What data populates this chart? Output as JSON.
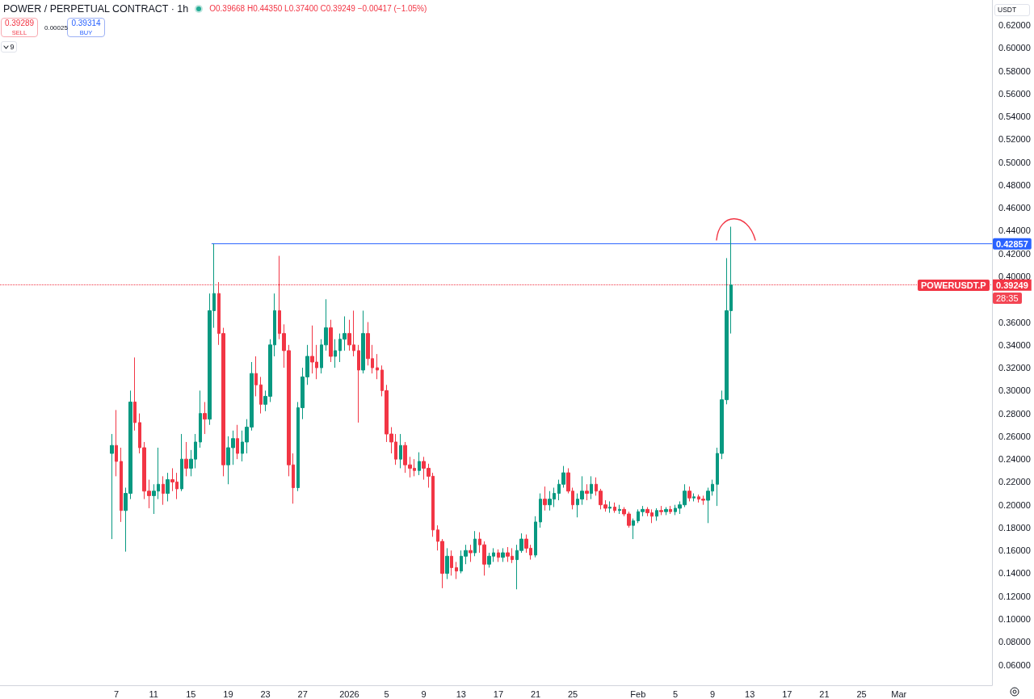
{
  "chart_data": {
    "type": "candlestick",
    "title": "POWER / PERPETUAL CONTRACT · 1h",
    "ylabel": "USDT",
    "annotations": [
      "O0.39668 H0.44350 L0.37400 C0.39249 −0.00417 (−1.05%)",
      "0.39289",
      "SELL",
      "0.00025",
      "0.39314",
      "BUY",
      "9",
      "POWERUSDT.P",
      "28:35"
    ],
    "x": [
      "2025-12-06T12:00",
      "2025-12-07T00:00",
      "2025-12-07T12:00",
      "2025-12-08T00:00",
      "2025-12-08T12:00",
      "2025-12-09T00:00",
      "2025-12-09T12:00",
      "2025-12-10T00:00",
      "2025-12-10T12:00",
      "2025-12-11T00:00",
      "2025-12-11T12:00",
      "2025-12-12T00:00",
      "2025-12-12T12:00",
      "2025-12-13T00:00",
      "2025-12-13T12:00",
      "2025-12-14T00:00",
      "2025-12-14T12:00",
      "2025-12-15T00:00",
      "2025-12-15T12:00",
      "2025-12-16T00:00",
      "2025-12-16T12:00",
      "2025-12-17T00:00",
      "2025-12-17T12:00",
      "2025-12-18T00:00",
      "2025-12-18T12:00",
      "2025-12-19T00:00",
      "2025-12-19T12:00",
      "2025-12-20T00:00",
      "2025-12-20T12:00",
      "2025-12-21T00:00",
      "2025-12-21T12:00",
      "2025-12-22T00:00",
      "2025-12-22T12:00",
      "2025-12-23T00:00",
      "2025-12-23T12:00",
      "2025-12-24T00:00",
      "2025-12-24T12:00",
      "2025-12-25T00:00",
      "2025-12-25T12:00",
      "2025-12-26T00:00",
      "2025-12-26T12:00",
      "2025-12-27T00:00",
      "2025-12-27T12:00",
      "2025-12-28T00:00",
      "2025-12-28T12:00",
      "2025-12-29T00:00",
      "2025-12-29T12:00",
      "2025-12-30T00:00",
      "2025-12-30T12:00",
      "2025-12-31T00:00",
      "2025-12-31T12:00",
      "2026-01-01T00:00",
      "2026-01-01T12:00",
      "2026-01-02T00:00",
      "2026-01-02T12:00",
      "2026-01-03T00:00",
      "2026-01-03T12:00",
      "2026-01-04T00:00",
      "2026-01-04T12:00",
      "2026-01-05T00:00",
      "2026-01-05T12:00",
      "2026-01-06T00:00",
      "2026-01-06T12:00",
      "2026-01-07T00:00",
      "2026-01-07T12:00",
      "2026-01-08T00:00",
      "2026-01-08T12:00",
      "2026-01-09T00:00",
      "2026-01-09T12:00",
      "2026-01-10T00:00",
      "2026-01-10T12:00",
      "2026-01-11T00:00",
      "2026-01-11T12:00",
      "2026-01-12T00:00",
      "2026-01-12T12:00",
      "2026-01-13T00:00",
      "2026-01-13T12:00",
      "2026-01-14T00:00",
      "2026-01-14T12:00",
      "2026-01-15T00:00",
      "2026-01-15T12:00",
      "2026-01-16T00:00",
      "2026-01-16T12:00",
      "2026-01-17T00:00",
      "2026-01-17T12:00",
      "2026-01-18T00:00",
      "2026-01-18T12:00",
      "2026-01-19T00:00",
      "2026-01-19T12:00",
      "2026-01-20T00:00",
      "2026-01-20T12:00",
      "2026-01-21T00:00",
      "2026-01-21T12:00",
      "2026-01-22T00:00",
      "2026-01-22T12:00",
      "2026-01-23T00:00",
      "2026-01-23T12:00",
      "2026-01-24T00:00",
      "2026-01-24T12:00",
      "2026-01-25T00:00",
      "2026-01-25T12:00",
      "2026-01-26T00:00",
      "2026-01-26T12:00",
      "2026-01-27T00:00",
      "2026-01-27T12:00",
      "2026-01-28T00:00",
      "2026-01-28T12:00",
      "2026-01-29T00:00",
      "2026-01-29T12:00",
      "2026-01-30T00:00",
      "2026-01-30T12:00",
      "2026-01-31T00:00",
      "2026-01-31T12:00",
      "2026-02-01T00:00",
      "2026-02-01T12:00",
      "2026-02-02T00:00",
      "2026-02-02T12:00",
      "2026-02-03T00:00",
      "2026-02-03T12:00",
      "2026-02-04T00:00",
      "2026-02-04T12:00",
      "2026-02-05T00:00",
      "2026-02-05T12:00",
      "2026-02-06T00:00",
      "2026-02-06T12:00",
      "2026-02-07T00:00",
      "2026-02-07T12:00",
      "2026-02-08T00:00",
      "2026-02-08T12:00",
      "2026-02-09T00:00",
      "2026-02-09T12:00",
      "2026-02-10T00:00",
      "2026-02-10T12:00",
      "2026-02-11T00:00"
    ],
    "ohlc": [
      [
        0.245,
        0.262,
        0.17,
        0.252
      ],
      [
        0.252,
        0.283,
        0.225,
        0.238
      ],
      [
        0.238,
        0.25,
        0.185,
        0.195
      ],
      [
        0.195,
        0.215,
        0.159,
        0.21
      ],
      [
        0.21,
        0.3,
        0.205,
        0.29
      ],
      [
        0.29,
        0.329,
        0.265,
        0.272
      ],
      [
        0.272,
        0.28,
        0.245,
        0.25
      ],
      [
        0.25,
        0.255,
        0.205,
        0.212
      ],
      [
        0.212,
        0.222,
        0.197,
        0.208
      ],
      [
        0.208,
        0.218,
        0.192,
        0.212
      ],
      [
        0.212,
        0.25,
        0.205,
        0.218
      ],
      [
        0.218,
        0.225,
        0.2,
        0.21
      ],
      [
        0.21,
        0.228,
        0.203,
        0.222
      ],
      [
        0.222,
        0.232,
        0.212,
        0.22
      ],
      [
        0.22,
        0.228,
        0.205,
        0.214
      ],
      [
        0.214,
        0.262,
        0.212,
        0.24
      ],
      [
        0.24,
        0.255,
        0.225,
        0.232
      ],
      [
        0.232,
        0.248,
        0.225,
        0.24
      ],
      [
        0.24,
        0.262,
        0.232,
        0.255
      ],
      [
        0.255,
        0.3,
        0.25,
        0.28
      ],
      [
        0.28,
        0.29,
        0.262,
        0.275
      ],
      [
        0.275,
        0.385,
        0.27,
        0.37
      ],
      [
        0.37,
        0.42857,
        0.355,
        0.385
      ],
      [
        0.385,
        0.395,
        0.34,
        0.35
      ],
      [
        0.35,
        0.355,
        0.225,
        0.235
      ],
      [
        0.235,
        0.26,
        0.218,
        0.25
      ],
      [
        0.25,
        0.265,
        0.235,
        0.258
      ],
      [
        0.258,
        0.27,
        0.24,
        0.245
      ],
      [
        0.245,
        0.265,
        0.238,
        0.255
      ],
      [
        0.255,
        0.275,
        0.245,
        0.268
      ],
      [
        0.268,
        0.325,
        0.265,
        0.315
      ],
      [
        0.315,
        0.33,
        0.295,
        0.305
      ],
      [
        0.305,
        0.312,
        0.28,
        0.288
      ],
      [
        0.288,
        0.3,
        0.282,
        0.295
      ],
      [
        0.295,
        0.345,
        0.29,
        0.34
      ],
      [
        0.34,
        0.385,
        0.33,
        0.37
      ],
      [
        0.37,
        0.418,
        0.345,
        0.35
      ],
      [
        0.35,
        0.358,
        0.32,
        0.335
      ],
      [
        0.335,
        0.34,
        0.225,
        0.235
      ],
      [
        0.235,
        0.245,
        0.201,
        0.215
      ],
      [
        0.215,
        0.29,
        0.212,
        0.285
      ],
      [
        0.285,
        0.32,
        0.275,
        0.312
      ],
      [
        0.312,
        0.34,
        0.305,
        0.33
      ],
      [
        0.33,
        0.357,
        0.315,
        0.325
      ],
      [
        0.325,
        0.34,
        0.31,
        0.32
      ],
      [
        0.32,
        0.345,
        0.315,
        0.34
      ],
      [
        0.34,
        0.38,
        0.335,
        0.355
      ],
      [
        0.355,
        0.362,
        0.325,
        0.33
      ],
      [
        0.33,
        0.345,
        0.32,
        0.335
      ],
      [
        0.335,
        0.35,
        0.325,
        0.345
      ],
      [
        0.345,
        0.365,
        0.335,
        0.35
      ],
      [
        0.35,
        0.362,
        0.335,
        0.34
      ],
      [
        0.34,
        0.37,
        0.33,
        0.335
      ],
      [
        0.335,
        0.34,
        0.272,
        0.318
      ],
      [
        0.318,
        0.37,
        0.315,
        0.35
      ],
      [
        0.35,
        0.36,
        0.322,
        0.328
      ],
      [
        0.328,
        0.34,
        0.315,
        0.32
      ],
      [
        0.32,
        0.332,
        0.31,
        0.318
      ],
      [
        0.318,
        0.322,
        0.295,
        0.3
      ],
      [
        0.3,
        0.305,
        0.255,
        0.262
      ],
      [
        0.262,
        0.268,
        0.245,
        0.255
      ],
      [
        0.255,
        0.262,
        0.235,
        0.24
      ],
      [
        0.24,
        0.262,
        0.232,
        0.252
      ],
      [
        0.252,
        0.255,
        0.228,
        0.235
      ],
      [
        0.235,
        0.242,
        0.224,
        0.232
      ],
      [
        0.232,
        0.24,
        0.225,
        0.23
      ],
      [
        0.23,
        0.246,
        0.226,
        0.238
      ],
      [
        0.238,
        0.242,
        0.222,
        0.232
      ],
      [
        0.232,
        0.236,
        0.215,
        0.225
      ],
      [
        0.225,
        0.228,
        0.172,
        0.178
      ],
      [
        0.178,
        0.182,
        0.16,
        0.168
      ],
      [
        0.168,
        0.17,
        0.127,
        0.14
      ],
      [
        0.14,
        0.162,
        0.135,
        0.155
      ],
      [
        0.155,
        0.16,
        0.138,
        0.145
      ],
      [
        0.145,
        0.15,
        0.135,
        0.142
      ],
      [
        0.142,
        0.16,
        0.14,
        0.155
      ],
      [
        0.155,
        0.165,
        0.148,
        0.16
      ],
      [
        0.16,
        0.165,
        0.15,
        0.158
      ],
      [
        0.158,
        0.177,
        0.155,
        0.17
      ],
      [
        0.17,
        0.176,
        0.158,
        0.165
      ],
      [
        0.165,
        0.168,
        0.138,
        0.148
      ],
      [
        0.148,
        0.158,
        0.145,
        0.155
      ],
      [
        0.155,
        0.162,
        0.15,
        0.158
      ],
      [
        0.158,
        0.161,
        0.15,
        0.154
      ],
      [
        0.154,
        0.162,
        0.15,
        0.158
      ],
      [
        0.158,
        0.163,
        0.15,
        0.155
      ],
      [
        0.155,
        0.162,
        0.149,
        0.152
      ],
      [
        0.152,
        0.165,
        0.126,
        0.16
      ],
      [
        0.16,
        0.175,
        0.158,
        0.17
      ],
      [
        0.17,
        0.174,
        0.158,
        0.162
      ],
      [
        0.162,
        0.165,
        0.152,
        0.156
      ],
      [
        0.156,
        0.19,
        0.154,
        0.185
      ],
      [
        0.185,
        0.21,
        0.18,
        0.205
      ],
      [
        0.205,
        0.216,
        0.195,
        0.2
      ],
      [
        0.2,
        0.212,
        0.195,
        0.205
      ],
      [
        0.205,
        0.215,
        0.198,
        0.21
      ],
      [
        0.21,
        0.222,
        0.204,
        0.218
      ],
      [
        0.218,
        0.234,
        0.215,
        0.228
      ],
      [
        0.228,
        0.232,
        0.21,
        0.212
      ],
      [
        0.212,
        0.215,
        0.196,
        0.2
      ],
      [
        0.2,
        0.21,
        0.189,
        0.205
      ],
      [
        0.205,
        0.225,
        0.2,
        0.212
      ],
      [
        0.212,
        0.218,
        0.204,
        0.21
      ],
      [
        0.21,
        0.225,
        0.205,
        0.218
      ],
      [
        0.218,
        0.224,
        0.208,
        0.212
      ],
      [
        0.212,
        0.214,
        0.196,
        0.2
      ],
      [
        0.2,
        0.204,
        0.194,
        0.197
      ],
      [
        0.197,
        0.203,
        0.193,
        0.198
      ],
      [
        0.198,
        0.202,
        0.193,
        0.195
      ],
      [
        0.195,
        0.2,
        0.192,
        0.196
      ],
      [
        0.196,
        0.198,
        0.19,
        0.192
      ],
      [
        0.192,
        0.194,
        0.18,
        0.182
      ],
      [
        0.182,
        0.188,
        0.17,
        0.186
      ],
      [
        0.186,
        0.196,
        0.184,
        0.194
      ],
      [
        0.194,
        0.199,
        0.19,
        0.196
      ],
      [
        0.196,
        0.198,
        0.19,
        0.193
      ],
      [
        0.193,
        0.196,
        0.184,
        0.19
      ],
      [
        0.19,
        0.197,
        0.186,
        0.195
      ],
      [
        0.195,
        0.199,
        0.191,
        0.194
      ],
      [
        0.194,
        0.198,
        0.191,
        0.196
      ],
      [
        0.196,
        0.199,
        0.192,
        0.194
      ],
      [
        0.194,
        0.2,
        0.191,
        0.197
      ],
      [
        0.197,
        0.203,
        0.192,
        0.2
      ],
      [
        0.2,
        0.218,
        0.198,
        0.212
      ],
      [
        0.212,
        0.216,
        0.203,
        0.206
      ],
      [
        0.206,
        0.21,
        0.203,
        0.207
      ],
      [
        0.207,
        0.209,
        0.202,
        0.205
      ],
      [
        0.205,
        0.208,
        0.2,
        0.204
      ],
      [
        0.204,
        0.215,
        0.184,
        0.212
      ],
      [
        0.212,
        0.222,
        0.208,
        0.218
      ],
      [
        0.218,
        0.25,
        0.199,
        0.245
      ],
      [
        0.245,
        0.3,
        0.24,
        0.292
      ],
      [
        0.292,
        0.416,
        0.288,
        0.37
      ],
      [
        0.37,
        0.4435,
        0.35,
        0.39249
      ]
    ],
    "series": [
      {
        "type": "line",
        "x": [
          "2025-12-17T06:00",
          "2026-03-11T00:00"
        ],
        "values": [
          0.42857,
          0.42857
        ],
        "color": "#2962ff",
        "value_labels": [
          null,
          "0.42857"
        ]
      }
    ],
    "ref_lines": [
      {
        "axis": "y",
        "value": 0.39249,
        "label": "0.39249",
        "color": "#f23645",
        "line_style": "dotted"
      }
    ],
    "xlim": [
      "2025-11-24T12:00",
      "2026-03-11T00:00"
    ],
    "xticks": [
      {
        "value": "2025-12-07",
        "label": "7"
      },
      {
        "value": "2025-12-11",
        "label": "11"
      },
      {
        "value": "2025-12-15",
        "label": "15"
      },
      {
        "value": "2025-12-19",
        "label": "19"
      },
      {
        "value": "2025-12-23",
        "label": "23"
      },
      {
        "value": "2025-12-27",
        "label": "27"
      },
      {
        "value": "2026-01-01",
        "label": "2026"
      },
      {
        "value": "2026-01-05",
        "label": "5"
      },
      {
        "value": "2026-01-09",
        "label": "9"
      },
      {
        "value": "2026-01-13",
        "label": "13"
      },
      {
        "value": "2026-01-17",
        "label": "17"
      },
      {
        "value": "2026-01-21",
        "label": "21"
      },
      {
        "value": "2026-01-25",
        "label": "25"
      },
      {
        "value": "2026-02-01",
        "label": "Feb"
      },
      {
        "value": "2026-02-05",
        "label": "5"
      },
      {
        "value": "2026-02-09",
        "label": "9"
      },
      {
        "value": "2026-02-13",
        "label": "13"
      },
      {
        "value": "2026-02-17",
        "label": "17"
      },
      {
        "value": "2026-02-21",
        "label": "21"
      },
      {
        "value": "2026-02-25",
        "label": "25"
      },
      {
        "value": "2026-03-01",
        "label": "Mar"
      }
    ],
    "ylim": [
      0.042,
      0.642
    ],
    "yticks": [
      {
        "value": 0.06,
        "label": "0.06000"
      },
      {
        "value": 0.08,
        "label": "0.08000"
      },
      {
        "value": 0.1,
        "label": "0.10000"
      },
      {
        "value": 0.12,
        "label": "0.12000"
      },
      {
        "value": 0.14,
        "label": "0.14000"
      },
      {
        "value": 0.16,
        "label": "0.16000"
      },
      {
        "value": 0.18,
        "label": "0.18000"
      },
      {
        "value": 0.2,
        "label": "0.20000"
      },
      {
        "value": 0.22,
        "label": "0.22000"
      },
      {
        "value": 0.24,
        "label": "0.24000"
      },
      {
        "value": 0.26,
        "label": "0.26000"
      },
      {
        "value": 0.28,
        "label": "0.28000"
      },
      {
        "value": 0.3,
        "label": "0.30000"
      },
      {
        "value": 0.32,
        "label": "0.32000"
      },
      {
        "value": 0.34,
        "label": "0.34000"
      },
      {
        "value": 0.36,
        "label": "0.36000"
      },
      {
        "value": 0.4,
        "label": "0.40000"
      },
      {
        "value": 0.42,
        "label": "0.42000"
      },
      {
        "value": 0.44,
        "label": "0.44000"
      },
      {
        "value": 0.46,
        "label": "0.46000"
      },
      {
        "value": 0.48,
        "label": "0.48000"
      },
      {
        "value": 0.5,
        "label": "0.50000"
      },
      {
        "value": 0.52,
        "label": "0.52000"
      },
      {
        "value": 0.54,
        "label": "0.54000"
      },
      {
        "value": 0.56,
        "label": "0.56000"
      },
      {
        "value": 0.58,
        "label": "0.58000"
      },
      {
        "value": 0.6,
        "label": "0.60000"
      },
      {
        "value": 0.62,
        "label": "0.62000"
      }
    ],
    "grid": false
  }
}
